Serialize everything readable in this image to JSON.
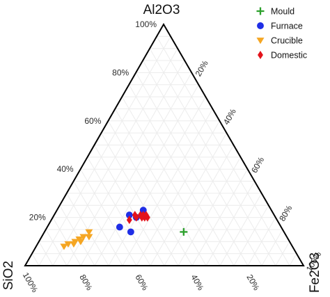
{
  "chart_data": {
    "type": "ternary-scatter",
    "vertices": {
      "top": "Al2O3",
      "left": "SiO2",
      "right": "Fe2O3"
    },
    "left_ticks": [
      "20%",
      "40%",
      "60%",
      "80%",
      "100%"
    ],
    "right_ticks": [
      "20%",
      "40%",
      "60%",
      "80%",
      "100%"
    ],
    "bottom_ticks": [
      "100%",
      "80%",
      "60%",
      "40%",
      "20%"
    ],
    "grid": true,
    "legend_position": "top-right",
    "colors": {
      "Mould": "#2ca02c",
      "Furnace": "#1f2ee6",
      "Crucible": "#f5a623",
      "Domestic": "#e3131b"
    },
    "series": [
      {
        "name": "Mould",
        "marker": "plus",
        "points": [
          {
            "Al2O3": 14,
            "Fe2O3": 50
          }
        ]
      },
      {
        "name": "Furnace",
        "marker": "circle",
        "points": [
          {
            "Al2O3": 20,
            "Fe2O3": 30
          },
          {
            "Al2O3": 23,
            "Fe2O3": 31
          },
          {
            "Al2O3": 16,
            "Fe2O3": 26
          },
          {
            "Al2O3": 21,
            "Fe2O3": 27
          },
          {
            "Al2O3": 14,
            "Fe2O3": 31
          }
        ]
      },
      {
        "name": "Crucible",
        "marker": "triangle-down",
        "points": [
          {
            "Al2O3": 14,
            "Fe2O3": 16
          },
          {
            "Al2O3": 12,
            "Fe2O3": 15
          },
          {
            "Al2O3": 11,
            "Fe2O3": 14
          },
          {
            "Al2O3": 10,
            "Fe2O3": 13
          },
          {
            "Al2O3": 9,
            "Fe2O3": 11
          },
          {
            "Al2O3": 8,
            "Fe2O3": 10
          },
          {
            "Al2O3": 10,
            "Fe2O3": 15
          },
          {
            "Al2O3": 9,
            "Fe2O3": 13
          },
          {
            "Al2O3": 12,
            "Fe2O3": 17
          }
        ]
      },
      {
        "name": "Domestic",
        "marker": "diamond",
        "points": [
          {
            "Al2O3": 21,
            "Fe2O3": 29
          },
          {
            "Al2O3": 21,
            "Fe2O3": 31
          },
          {
            "Al2O3": 21,
            "Fe2O3": 32
          },
          {
            "Al2O3": 20,
            "Fe2O3": 33
          },
          {
            "Al2O3": 20,
            "Fe2O3": 34
          },
          {
            "Al2O3": 19,
            "Fe2O3": 28
          },
          {
            "Al2O3": 20,
            "Fe2O3": 30
          },
          {
            "Al2O3": 21,
            "Fe2O3": 33
          },
          {
            "Al2O3": 20,
            "Fe2O3": 32
          }
        ]
      }
    ]
  }
}
